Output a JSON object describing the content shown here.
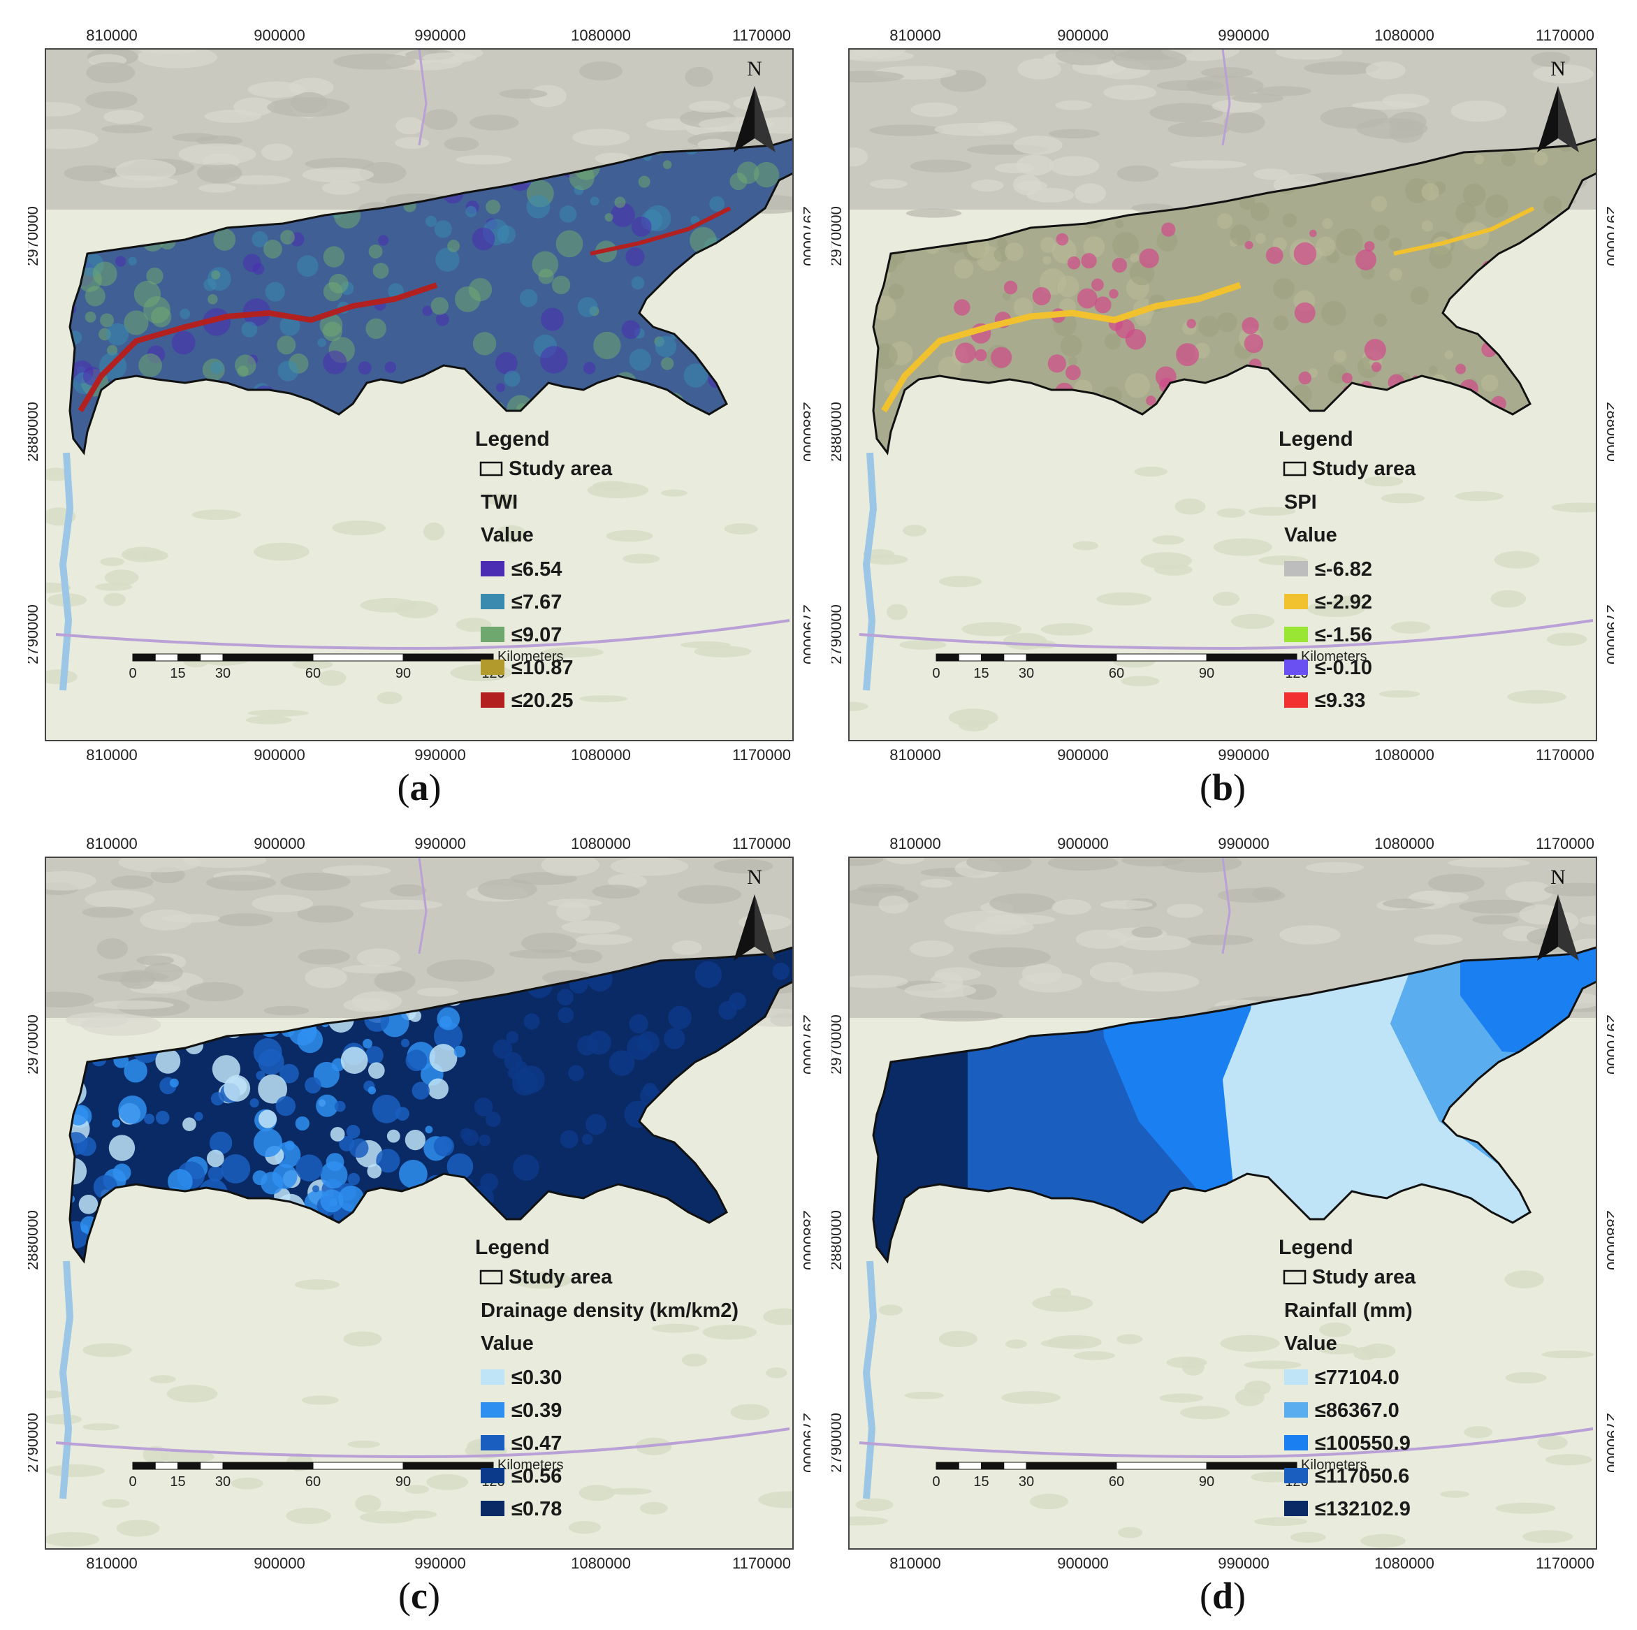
{
  "panels": [
    {
      "id": "a",
      "caption_letter": "a",
      "x_ticks": [
        "810000",
        "900000",
        "990000",
        "1080000",
        "1170000"
      ],
      "y_ticks": [
        "2970000",
        "2880000",
        "2790000"
      ],
      "north_label": "N",
      "scale_unit": "Kilometers",
      "scale_labels": [
        "0",
        "15",
        "30",
        "60",
        "90",
        "120"
      ],
      "legend": {
        "title": "Legend",
        "study_area_label": "Study area",
        "layer_title": "TWI",
        "value_label": "Value",
        "classes": [
          {
            "label": "≤6.54",
            "color": "#4a2db3"
          },
          {
            "label": "≤7.67",
            "color": "#3a8ab0"
          },
          {
            "label": "≤9.07",
            "color": "#6fa86f"
          },
          {
            "label": "≤10.87",
            "color": "#b39a2d"
          },
          {
            "label": "≤20.25",
            "color": "#b32020"
          }
        ]
      },
      "fill_color": "#3f5f95",
      "river_color": "#c8391e"
    },
    {
      "id": "b",
      "caption_letter": "b",
      "x_ticks": [
        "810000",
        "900000",
        "990000",
        "1080000",
        "1170000"
      ],
      "y_ticks": [
        "2970000",
        "2880000",
        "2790000"
      ],
      "north_label": "N",
      "scale_unit": "Kilometers",
      "scale_labels": [
        "0",
        "15",
        "30",
        "60",
        "90",
        "120"
      ],
      "legend": {
        "title": "Legend",
        "study_area_label": "Study area",
        "layer_title": "SPI",
        "value_label": "Value",
        "classes": [
          {
            "label": "≤-6.82",
            "color": "#bdbdbd"
          },
          {
            "label": "≤-2.92",
            "color": "#f2c22e"
          },
          {
            "label": "≤-1.56",
            "color": "#9ae634"
          },
          {
            "label": "≤-0.10",
            "color": "#6a4ff2"
          },
          {
            "label": "≤9.33",
            "color": "#f23030"
          }
        ]
      },
      "fill_color": "#a8ab8e",
      "river_color": "#e8b62a"
    },
    {
      "id": "c",
      "caption_letter": "c",
      "x_ticks": [
        "810000",
        "900000",
        "990000",
        "1080000",
        "1170000"
      ],
      "y_ticks": [
        "2970000",
        "2880000",
        "2790000"
      ],
      "north_label": "N",
      "scale_unit": "Kilometers",
      "scale_labels": [
        "0",
        "15",
        "30",
        "60",
        "90",
        "120"
      ],
      "legend": {
        "title": "Legend",
        "study_area_label": "Study area",
        "layer_title": "Drainage density (km/km2)",
        "value_label": "Value",
        "classes": [
          {
            "label": "≤0.30",
            "color": "#bfe3f7"
          },
          {
            "label": "≤0.39",
            "color": "#2f8ff0"
          },
          {
            "label": "≤0.47",
            "color": "#1a5fc0"
          },
          {
            "label": "≤0.56",
            "color": "#0c3a8a"
          },
          {
            "label": "≤0.78",
            "color": "#0a2a66"
          }
        ]
      },
      "fill_color": "#0d3a8a",
      "river_color": "#1a5fc0"
    },
    {
      "id": "d",
      "caption_letter": "d",
      "x_ticks": [
        "810000",
        "900000",
        "990000",
        "1080000",
        "1170000"
      ],
      "y_ticks": [
        "2970000",
        "2880000",
        "2790000"
      ],
      "north_label": "N",
      "scale_unit": "Kilometers",
      "scale_labels": [
        "0",
        "15",
        "30",
        "60",
        "90",
        "120"
      ],
      "legend": {
        "title": "Legend",
        "study_area_label": "Study area",
        "layer_title": "Rainfall (mm)",
        "value_label": "Value",
        "classes": [
          {
            "label": "≤77104.0",
            "color": "#bfe3f7"
          },
          {
            "label": "≤86367.0",
            "color": "#5aaef0"
          },
          {
            "label": "≤100550.9",
            "color": "#1a7ff0"
          },
          {
            "label": "≤117050.6",
            "color": "#1a5fc0"
          },
          {
            "label": "≤132102.9",
            "color": "#0a2a66"
          }
        ]
      },
      "fill_color": "#1a7ff0",
      "river_color": "#1a5fc0"
    }
  ]
}
